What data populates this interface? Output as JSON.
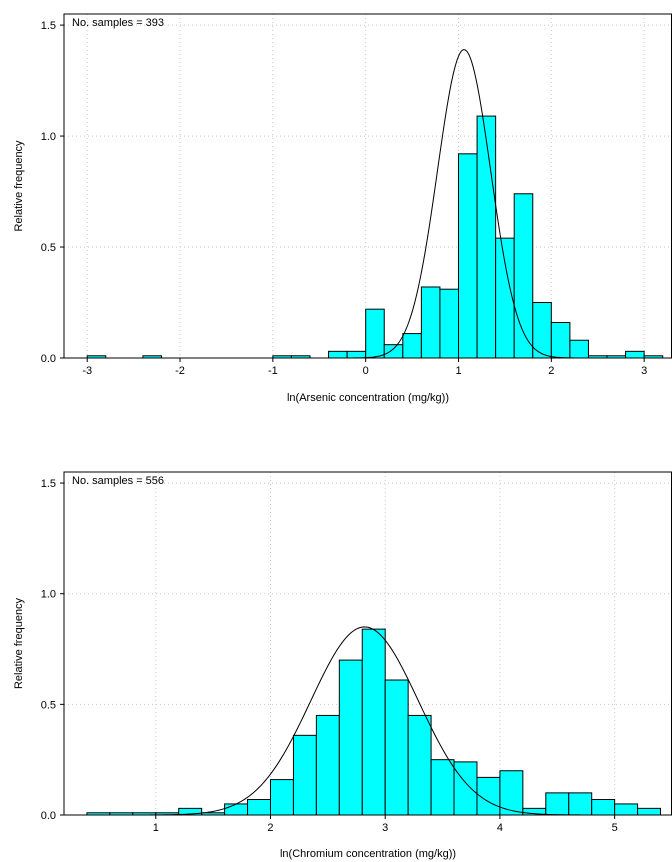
{
  "chart_data": [
    {
      "type": "bar",
      "subtype": "histogram with fitted normal curve",
      "annotation": "No. samples = 393",
      "xlabel": "ln(Arsenic concentration (mg/kg))",
      "ylabel": "Relative frequency",
      "xlim": [
        -3.25,
        3.3
      ],
      "ylim": [
        0,
        1.55
      ],
      "xticks": [
        -3,
        -2,
        -1,
        0,
        1,
        2,
        3
      ],
      "yticks": [
        0.0,
        0.5,
        1.0,
        1.5
      ],
      "ytick_labels": [
        "0.0",
        "0.5",
        "1.0",
        "1.5"
      ],
      "grid": true,
      "bar_color": "#00ffff",
      "bin_width": 0.2,
      "bins": [
        {
          "x": -2.9,
          "y": 0.01
        },
        {
          "x": -2.3,
          "y": 0.01
        },
        {
          "x": -0.9,
          "y": 0.01
        },
        {
          "x": -0.7,
          "y": 0.01
        },
        {
          "x": -0.3,
          "y": 0.03
        },
        {
          "x": -0.1,
          "y": 0.03
        },
        {
          "x": 0.1,
          "y": 0.22
        },
        {
          "x": 0.3,
          "y": 0.06
        },
        {
          "x": 0.5,
          "y": 0.11
        },
        {
          "x": 0.7,
          "y": 0.32
        },
        {
          "x": 0.9,
          "y": 0.31
        },
        {
          "x": 1.1,
          "y": 0.92
        },
        {
          "x": 1.3,
          "y": 1.09
        },
        {
          "x": 1.5,
          "y": 0.54
        },
        {
          "x": 1.7,
          "y": 0.74
        },
        {
          "x": 1.9,
          "y": 0.25
        },
        {
          "x": 2.1,
          "y": 0.16
        },
        {
          "x": 2.3,
          "y": 0.08
        },
        {
          "x": 2.5,
          "y": 0.01
        },
        {
          "x": 2.7,
          "y": 0.01
        },
        {
          "x": 2.9,
          "y": 0.03
        },
        {
          "x": 3.1,
          "y": 0.01
        }
      ],
      "normal_fit": {
        "mean": 1.06,
        "peak": 1.39
      }
    },
    {
      "type": "bar",
      "subtype": "histogram with fitted normal curve",
      "annotation": "No. samples = 556",
      "xlabel": "ln(Chromium concentration (mg/kg))",
      "ylabel": "Relative frequency",
      "xlim": [
        0.2,
        5.5
      ],
      "ylim": [
        0,
        1.55
      ],
      "xticks": [
        1,
        2,
        3,
        4,
        5
      ],
      "yticks": [
        0.0,
        0.5,
        1.0,
        1.5
      ],
      "ytick_labels": [
        "0.0",
        "0.5",
        "1.0",
        "1.5"
      ],
      "grid": true,
      "bar_color": "#00ffff",
      "bin_width": 0.2,
      "bins": [
        {
          "x": 0.5,
          "y": 0.01
        },
        {
          "x": 0.7,
          "y": 0.01
        },
        {
          "x": 0.9,
          "y": 0.01
        },
        {
          "x": 1.1,
          "y": 0.01
        },
        {
          "x": 1.3,
          "y": 0.03
        },
        {
          "x": 1.5,
          "y": 0.01
        },
        {
          "x": 1.7,
          "y": 0.05
        },
        {
          "x": 1.9,
          "y": 0.07
        },
        {
          "x": 2.1,
          "y": 0.16
        },
        {
          "x": 2.3,
          "y": 0.36
        },
        {
          "x": 2.5,
          "y": 0.45
        },
        {
          "x": 2.7,
          "y": 0.7
        },
        {
          "x": 2.9,
          "y": 0.84
        },
        {
          "x": 3.1,
          "y": 0.61
        },
        {
          "x": 3.3,
          "y": 0.45
        },
        {
          "x": 3.5,
          "y": 0.25
        },
        {
          "x": 3.7,
          "y": 0.24
        },
        {
          "x": 3.9,
          "y": 0.17
        },
        {
          "x": 4.1,
          "y": 0.2
        },
        {
          "x": 4.3,
          "y": 0.03
        },
        {
          "x": 4.5,
          "y": 0.1
        },
        {
          "x": 4.7,
          "y": 0.1
        },
        {
          "x": 4.9,
          "y": 0.07
        },
        {
          "x": 5.1,
          "y": 0.05
        },
        {
          "x": 5.3,
          "y": 0.03
        }
      ],
      "normal_fit": {
        "mean": 2.82,
        "peak": 0.85
      }
    }
  ]
}
